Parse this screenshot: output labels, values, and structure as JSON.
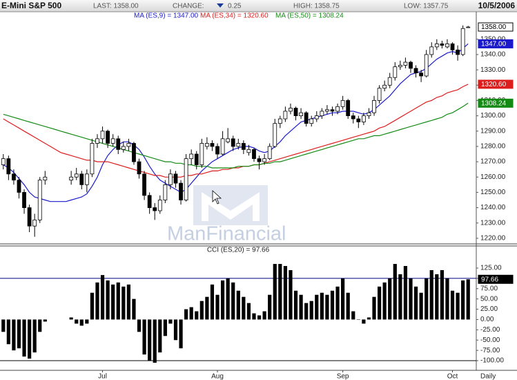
{
  "header": {
    "title": "E-Mini S&P 500",
    "last": "LAST: 1358.00",
    "change_label": "CHANGE:",
    "change": "0.25",
    "high": "HIGH: 1358.75",
    "low": "LOW: 1357.75",
    "date": "10/5/2006"
  },
  "chart_data": [
    {
      "type": "candlestick",
      "watermark": "ManFinancial",
      "end_label": "1358.00",
      "open": [
        1268,
        1272,
        1262,
        1258,
        1250,
        1240,
        1228,
        1232,
        1258,
        null,
        null,
        null,
        null,
        1258,
        1260,
        1262,
        1255,
        1262,
        1282,
        1285,
        1290,
        1282,
        1285,
        1278,
        1280,
        1282,
        1270,
        1262,
        1248,
        1240,
        1238,
        1245,
        1255,
        1262,
        1256,
        1245,
        1272,
        1275,
        1268,
        1280,
        1282,
        1280,
        1275,
        1283,
        1285,
        1280,
        1282,
        1276,
        1278,
        1272,
        1270,
        1272,
        1280,
        1295,
        1298,
        1303,
        1305,
        1300,
        1302,
        1295,
        1298,
        1300,
        1303,
        1304,
        1303,
        1306,
        1310,
        1300,
        1298,
        1296,
        1300,
        1302,
        1310,
        1318,
        1320,
        1325,
        1332,
        1333,
        1335,
        1331,
        1328,
        1326,
        1340,
        1345,
        1347,
        1345,
        1347,
        1343,
        1340,
        1358
      ],
      "high": [
        1275,
        1274,
        1265,
        1260,
        1252,
        1242,
        1236,
        1260,
        1264,
        null,
        null,
        null,
        null,
        1264,
        1266,
        1264,
        1265,
        1285,
        1288,
        1293,
        1291,
        1288,
        1287,
        1283,
        1285,
        1283,
        1272,
        1264,
        1250,
        1243,
        1248,
        1258,
        1265,
        1264,
        1258,
        1275,
        1278,
        1277,
        1285,
        1286,
        1284,
        1282,
        1290,
        1292,
        1287,
        1285,
        1284,
        1281,
        1279,
        1274,
        1275,
        1282,
        1298,
        1300,
        1306,
        1308,
        1306,
        1305,
        1303,
        1300,
        1303,
        1305,
        1307,
        1306,
        1308,
        1313,
        1311,
        1302,
        1300,
        1302,
        1305,
        1313,
        1320,
        1323,
        1328,
        1335,
        1336,
        1338,
        1336,
        1333,
        1330,
        1343,
        1348,
        1350,
        1349,
        1350,
        1348,
        1346,
        1359,
        1358.75
      ],
      "low": [
        1265,
        1258,
        1255,
        1246,
        1236,
        1224,
        1221,
        1230,
        1255,
        null,
        null,
        null,
        null,
        1255,
        1258,
        1252,
        1250,
        1260,
        1279,
        1282,
        1279,
        1280,
        1275,
        1276,
        1277,
        1268,
        1259,
        1245,
        1236,
        1232,
        1236,
        1243,
        1252,
        1253,
        1242,
        1244,
        1268,
        1265,
        1266,
        1278,
        1277,
        1272,
        1274,
        1282,
        1277,
        1278,
        1275,
        1274,
        1270,
        1265,
        1268,
        1271,
        1279,
        1292,
        1296,
        1301,
        1297,
        1298,
        1293,
        1293,
        1296,
        1298,
        1301,
        1300,
        1301,
        1304,
        1298,
        1295,
        1292,
        1294,
        1298,
        1300,
        1308,
        1316,
        1318,
        1323,
        1330,
        1331,
        1328,
        1325,
        1322,
        1325,
        1338,
        1343,
        1344,
        1344,
        1340,
        1336,
        1339,
        1357.75
      ],
      "close": [
        1272,
        1262,
        1258,
        1250,
        1240,
        1228,
        1232,
        1258,
        1260,
        null,
        null,
        null,
        null,
        1260,
        1262,
        1255,
        1262,
        1282,
        1285,
        1290,
        1282,
        1285,
        1278,
        1280,
        1282,
        1270,
        1262,
        1248,
        1240,
        1238,
        1245,
        1255,
        1262,
        1256,
        1245,
        1272,
        1275,
        1268,
        1282,
        1282,
        1280,
        1275,
        1285,
        1285,
        1280,
        1282,
        1278,
        1278,
        1272,
        1270,
        1272,
        1280,
        1295,
        1298,
        1303,
        1305,
        1300,
        1302,
        1295,
        1298,
        1300,
        1303,
        1304,
        1303,
        1306,
        1310,
        1300,
        1298,
        1296,
        1300,
        1302,
        1310,
        1318,
        1320,
        1325,
        1332,
        1333,
        1335,
        1331,
        1328,
        1326,
        1340,
        1345,
        1347,
        1346,
        1347,
        1343,
        1340,
        1357,
        1358
      ],
      "series": [
        {
          "name": "MA (ES,9) = 1347.00",
          "color": "#1a1acc",
          "end_label": "1347.00",
          "values": [
            1268,
            1266,
            1263,
            1259,
            1255,
            1250,
            1247,
            1246,
            1245,
            1244,
            1244,
            1244,
            1244,
            1245,
            1246,
            1247,
            1249,
            1254,
            1260,
            1268,
            1274,
            1278,
            1281,
            1283,
            1283,
            1281,
            1278,
            1273,
            1267,
            1262,
            1258,
            1256,
            1254,
            1252,
            1250,
            1252,
            1256,
            1260,
            1264,
            1267,
            1270,
            1272,
            1274,
            1276,
            1278,
            1279,
            1280,
            1280,
            1279,
            1277,
            1276,
            1277,
            1280,
            1283,
            1287,
            1290,
            1293,
            1296,
            1297,
            1298,
            1299,
            1300,
            1301,
            1302,
            1302,
            1303,
            1303,
            1303,
            1302,
            1301,
            1302,
            1304,
            1307,
            1310,
            1313,
            1317,
            1321,
            1324,
            1327,
            1328,
            1329,
            1331,
            1334,
            1337,
            1339,
            1341,
            1342,
            1341,
            1344,
            1347
          ]
        },
        {
          "name": "MA (ES,34) = 1320.60",
          "color": "#dd1c1c",
          "end_label": "1320.60",
          "values": [
            1298,
            1296,
            1294,
            1292,
            1290,
            1288,
            1286,
            1284,
            1282,
            1280,
            1278,
            1276,
            1275,
            1274,
            1273,
            1272,
            1271,
            1271,
            1270,
            1270,
            1270,
            1269,
            1268,
            1267,
            1266,
            1265,
            1264,
            1263,
            1262,
            1261,
            1261,
            1260,
            1260,
            1260,
            1260,
            1261,
            1261,
            1262,
            1262,
            1263,
            1264,
            1264,
            1265,
            1265,
            1266,
            1266,
            1267,
            1267,
            1268,
            1268,
            1269,
            1270,
            1271,
            1272,
            1273,
            1274,
            1275,
            1276,
            1277,
            1278,
            1279,
            1280,
            1281,
            1282,
            1283,
            1284,
            1285,
            1286,
            1287,
            1288,
            1289,
            1290,
            1292,
            1293,
            1295,
            1297,
            1299,
            1301,
            1303,
            1305,
            1307,
            1309,
            1310,
            1312,
            1313,
            1315,
            1316,
            1317,
            1319,
            1320.6
          ]
        },
        {
          "name": "MA (ES,50) = 1308.24",
          "color": "#138a13",
          "end_label": "1308.24",
          "values": [
            1301,
            1300,
            1299,
            1298,
            1297,
            1296,
            1295,
            1294,
            1293,
            1292,
            1291,
            1290,
            1289,
            1288,
            1287,
            1286,
            1285,
            1284,
            1283,
            1282,
            1281,
            1280,
            1279,
            1278,
            1277,
            1276,
            1275,
            1274,
            1273,
            1272,
            1271,
            1270,
            1270,
            1269,
            1269,
            1268,
            1268,
            1267,
            1267,
            1267,
            1266,
            1266,
            1266,
            1266,
            1266,
            1267,
            1267,
            1267,
            1268,
            1268,
            1269,
            1269,
            1270,
            1270,
            1271,
            1272,
            1273,
            1274,
            1275,
            1276,
            1277,
            1278,
            1279,
            1280,
            1281,
            1282,
            1283,
            1284,
            1285,
            1285,
            1286,
            1287,
            1287,
            1288,
            1289,
            1290,
            1291,
            1292,
            1293,
            1294,
            1295,
            1296,
            1297,
            1298,
            1299,
            1301,
            1302,
            1304,
            1306,
            1308.24
          ]
        }
      ],
      "ylim": [
        1216.8,
        1367.5
      ],
      "yticks": [
        {
          "value": 1220,
          "label": "1220.00"
        },
        {
          "value": 1230,
          "label": "1230.00"
        },
        {
          "value": 1240,
          "label": "1240.00"
        },
        {
          "value": 1250,
          "label": "1250.00"
        },
        {
          "value": 1260,
          "label": "1260.00"
        },
        {
          "value": 1270,
          "label": "1270.00"
        },
        {
          "value": 1280,
          "label": "1280.00"
        },
        {
          "value": 1290,
          "label": "1290.00"
        },
        {
          "value": 1300,
          "label": "1300.00"
        },
        {
          "value": 1310,
          "label": "1310.00"
        },
        {
          "value": 1320,
          "label": "1320.00"
        },
        {
          "value": 1330,
          "label": "1330.00"
        },
        {
          "value": 1340,
          "label": "1340.00"
        },
        {
          "value": 1350,
          "label": "1350.00"
        }
      ]
    },
    {
      "type": "bar",
      "title": "CCI (ES,20) = 97.66",
      "color": "#000000",
      "end_label": "97.66",
      "periodicity": "Daily",
      "categories": [
        null,
        null,
        null,
        null,
        null,
        null,
        null,
        null,
        null,
        null,
        null,
        null,
        null,
        null,
        null,
        null,
        null,
        null,
        null,
        "Jul",
        null,
        null,
        null,
        null,
        null,
        null,
        null,
        null,
        null,
        null,
        null,
        null,
        null,
        null,
        null,
        null,
        null,
        null,
        null,
        null,
        null,
        "Aug",
        null,
        null,
        null,
        null,
        null,
        null,
        null,
        null,
        null,
        null,
        null,
        null,
        null,
        null,
        null,
        null,
        null,
        null,
        null,
        null,
        null,
        null,
        null,
        "Sep",
        null,
        null,
        null,
        null,
        null,
        null,
        null,
        null,
        null,
        null,
        null,
        null,
        null,
        null,
        null,
        null,
        null,
        null,
        null,
        null,
        "Oct",
        null,
        null,
        null
      ],
      "values": [
        -30,
        -60,
        -75,
        -70,
        -90,
        -95,
        -80,
        -30,
        -5,
        null,
        null,
        null,
        null,
        5,
        -10,
        -15,
        -10,
        65,
        90,
        108,
        95,
        85,
        90,
        80,
        85,
        50,
        -30,
        -85,
        -100,
        -105,
        -80,
        -40,
        -10,
        -50,
        -70,
        25,
        30,
        20,
        45,
        55,
        85,
        60,
        95,
        100,
        90,
        70,
        55,
        40,
        15,
        10,
        20,
        60,
        135,
        135,
        130,
        120,
        70,
        60,
        40,
        45,
        60,
        65,
        60,
        70,
        80,
        100,
        65,
        20,
        0,
        -10,
        5,
        55,
        80,
        90,
        100,
        135,
        110,
        130,
        100,
        80,
        65,
        100,
        120,
        110,
        120,
        100,
        70,
        65,
        95,
        97.66
      ],
      "reference_lines": [
        {
          "value": 100,
          "color": "#000080"
        },
        {
          "value": -100,
          "color": "#000000"
        }
      ],
      "ylim": [
        -113.4,
        155.2
      ],
      "yticks": [
        {
          "value": 125,
          "label": "125.00"
        },
        {
          "value": 100,
          "label": "100.00"
        },
        {
          "value": 75,
          "label": "75.00"
        },
        {
          "value": 50,
          "label": "50.00"
        },
        {
          "value": 25,
          "label": "25.00"
        },
        {
          "value": 0,
          "label": "0.00"
        },
        {
          "value": -25,
          "label": "-25.00"
        },
        {
          "value": -50,
          "label": "-50.00"
        },
        {
          "value": -75,
          "label": "-75.00"
        },
        {
          "value": -100,
          "label": "-100.00"
        }
      ]
    }
  ]
}
